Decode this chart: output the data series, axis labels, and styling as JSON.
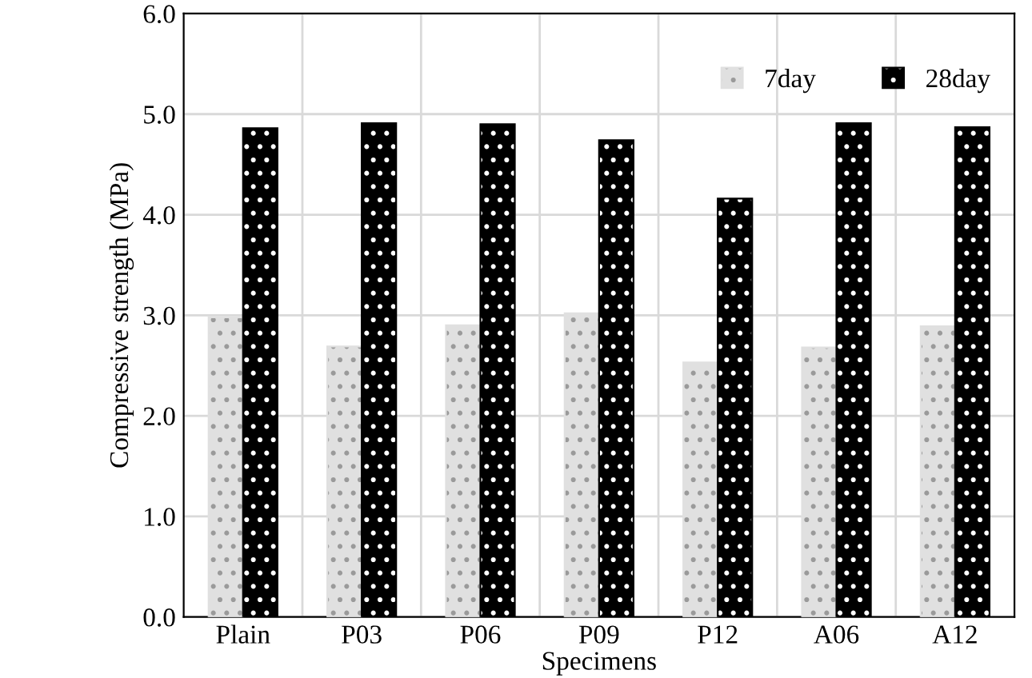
{
  "chart_data": {
    "type": "bar",
    "xlabel": "Specimens",
    "ylabel": "Compressive strength (MPa)",
    "categories": [
      "Plain",
      "P03",
      "P06",
      "P09",
      "P12",
      "A06",
      "A12"
    ],
    "series": [
      {
        "name": "7day",
        "color": "#e0e0e0",
        "values": [
          2.98,
          2.69,
          2.9,
          3.02,
          2.53,
          2.68,
          2.89
        ]
      },
      {
        "name": "28day",
        "color": "#000000",
        "values": [
          4.86,
          4.91,
          4.9,
          4.74,
          4.16,
          4.91,
          4.87
        ]
      }
    ],
    "ylim": [
      0,
      6
    ],
    "yticks": [
      {
        "value": 0,
        "label": "0.0"
      },
      {
        "value": 1,
        "label": "1.0"
      },
      {
        "value": 2,
        "label": "2.0"
      },
      {
        "value": 3,
        "label": "3.0"
      },
      {
        "value": 4,
        "label": "4.0"
      },
      {
        "value": 5,
        "label": "5.0"
      },
      {
        "value": 6,
        "label": "6.0"
      }
    ],
    "grid": true,
    "legend": "top right"
  }
}
